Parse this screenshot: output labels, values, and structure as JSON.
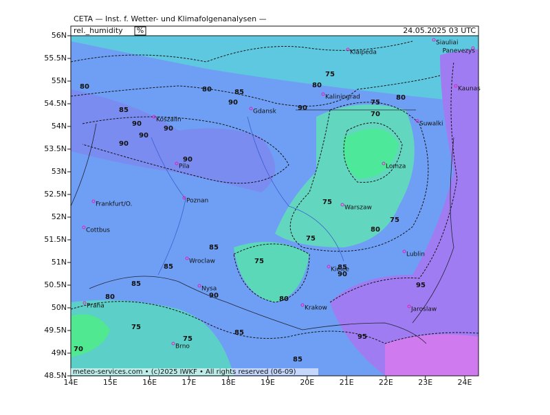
{
  "header": {
    "title": "CETA — Inst. f. Wetter- und Klimafolgenanalysen —",
    "variable": "rel._humidity",
    "unit": "%",
    "datetime": "24.05.2025 03 UTC"
  },
  "map": {
    "lat_labels": [
      "56N",
      "55.5N",
      "55N",
      "54.5N",
      "54N",
      "53.5N",
      "53N",
      "52.5N",
      "52N",
      "51.5N",
      "51N",
      "50.5N",
      "50N",
      "49.5N",
      "49N",
      "48.5N"
    ],
    "lon_labels": [
      "14E",
      "15E",
      "16E",
      "17E",
      "18E",
      "19E",
      "20E",
      "21E",
      "22E",
      "23E",
      "24E"
    ],
    "cities": [
      "Siauliai",
      "Panevezys",
      "Klaipeda",
      "Kaunas",
      "Kaliningrad",
      "Gdansk",
      "Koszalin",
      "Suwalki",
      "Pila",
      "Lomza",
      "Frankfurt/O.",
      "Poznan",
      "Warszaw",
      "Cottbus",
      "Lublin",
      "Wroclaw",
      "Kielce",
      "Nysa",
      "Praha",
      "Krakow",
      "Jaroslaw",
      "Brno"
    ],
    "contour_labels": [
      80,
      80,
      85,
      90,
      80,
      75,
      80,
      75,
      70,
      85,
      90,
      90,
      90,
      90,
      90,
      90,
      75,
      75,
      80,
      75,
      85,
      85,
      75,
      85,
      90,
      85,
      90,
      80,
      80,
      95,
      95,
      75,
      75,
      85,
      70,
      85
    ],
    "footer": "meteo-services.com • (c)2025 IWKF • All rights reserved (06-09)"
  }
}
